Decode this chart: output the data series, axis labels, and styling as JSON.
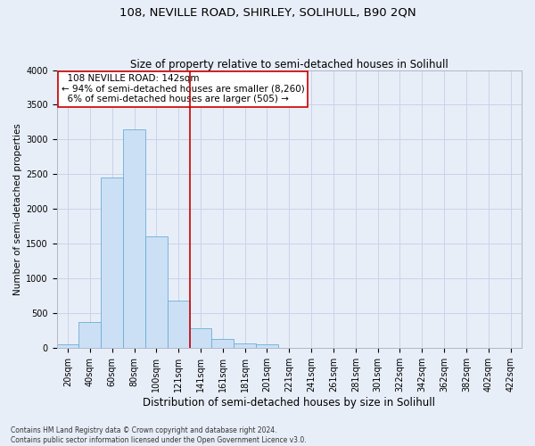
{
  "title": "108, NEVILLE ROAD, SHIRLEY, SOLIHULL, B90 2QN",
  "subtitle": "Size of property relative to semi-detached houses in Solihull",
  "xlabel": "Distribution of semi-detached houses by size in Solihull",
  "ylabel": "Number of semi-detached properties",
  "footnote": "Contains HM Land Registry data © Crown copyright and database right 2024.\nContains public sector information licensed under the Open Government Licence v3.0.",
  "bar_labels": [
    "20sqm",
    "40sqm",
    "60sqm",
    "80sqm",
    "100sqm",
    "121sqm",
    "141sqm",
    "161sqm",
    "181sqm",
    "201sqm",
    "221sqm",
    "241sqm",
    "261sqm",
    "281sqm",
    "301sqm",
    "322sqm",
    "342sqm",
    "362sqm",
    "382sqm",
    "402sqm",
    "422sqm"
  ],
  "bar_values": [
    50,
    375,
    2450,
    3150,
    1600,
    675,
    275,
    125,
    65,
    55,
    0,
    0,
    0,
    0,
    0,
    0,
    0,
    0,
    0,
    0,
    0
  ],
  "bar_color": "#cce0f5",
  "bar_edge_color": "#6aaed6",
  "property_line_x": 5.5,
  "property_line_label": "108 NEVILLE ROAD: 142sqm",
  "pct_smaller": 94,
  "pct_smaller_count": "8,260",
  "pct_larger": 6,
  "pct_larger_count": "505",
  "annotation_box_color": "#ffffff",
  "annotation_box_edge": "#cc0000",
  "vline_color": "#cc0000",
  "ylim": [
    0,
    4000
  ],
  "yticks": [
    0,
    500,
    1000,
    1500,
    2000,
    2500,
    3000,
    3500,
    4000
  ],
  "grid_color": "#c8d4e8",
  "bg_color": "#e8eef8",
  "title_fontsize": 9.5,
  "subtitle_fontsize": 8.5,
  "xlabel_fontsize": 8.5,
  "ylabel_fontsize": 7.5,
  "tick_fontsize": 7,
  "annot_fontsize": 7.5,
  "footnote_fontsize": 5.5
}
